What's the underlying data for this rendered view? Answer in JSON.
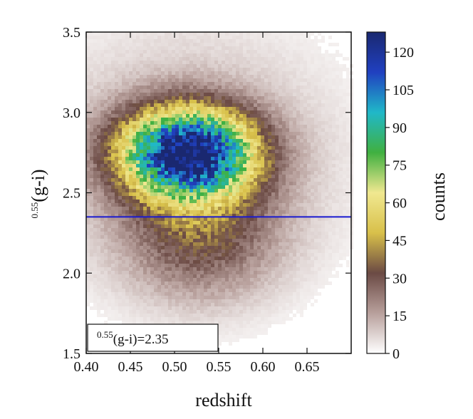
{
  "chart_data": {
    "type": "heatmap",
    "title": "",
    "xlabel": "redshift",
    "ylabel_prefix": "0.55",
    "ylabel_main": "(g-i)",
    "colorbar_label": "counts",
    "xlim": [
      0.4,
      0.7
    ],
    "ylim": [
      1.5,
      3.5
    ],
    "xticks": [
      "0.40",
      "0.45",
      "0.50",
      "0.55",
      "0.60",
      "0.65"
    ],
    "xtick_values": [
      0.4,
      0.45,
      0.5,
      0.55,
      0.6,
      0.65
    ],
    "yticks": [
      "1.5",
      "2.0",
      "2.5",
      "3.0",
      "3.5"
    ],
    "ytick_values": [
      1.5,
      2.0,
      2.5,
      3.0,
      3.5
    ],
    "colorbar_ticks": [
      "0",
      "15",
      "30",
      "45",
      "60",
      "75",
      "90",
      "105",
      "120"
    ],
    "colorbar_tick_values": [
      0,
      15,
      30,
      45,
      60,
      75,
      90,
      105,
      120
    ],
    "colorbar_range": [
      0,
      128
    ],
    "colormap": [
      "#ffffff",
      "#b8a09c",
      "#6b4a44",
      "#d8c04a",
      "#f0e890",
      "#40b040",
      "#20b8c8",
      "#2040c0",
      "#1a2870"
    ],
    "peak": {
      "redshift": 0.515,
      "color": 2.75,
      "counts": 125
    },
    "cutoff_line": {
      "y": 2.35,
      "color": "#1a1ad0"
    },
    "legend_prefix": "0.55",
    "legend_main": "(g-i)=2.35"
  }
}
